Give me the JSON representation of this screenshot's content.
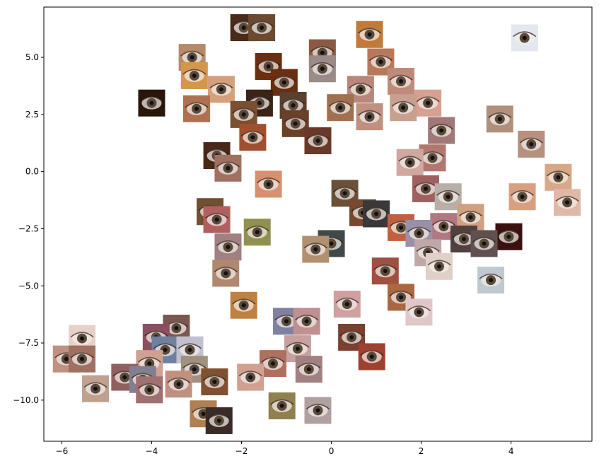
{
  "chart_data": {
    "type": "scatter",
    "title": "",
    "xlabel": "",
    "ylabel": "",
    "xlim": [
      -6.4,
      5.8
    ],
    "ylim": [
      -11.8,
      7.2
    ],
    "x_ticks": [
      -6,
      -4,
      -2,
      0,
      2,
      4
    ],
    "x_tick_labels": [
      "−6",
      "−4",
      "−2",
      "0",
      "2",
      "4"
    ],
    "y_ticks": [
      5.0,
      2.5,
      0.0,
      -2.5,
      -5.0,
      -7.5,
      -10.0
    ],
    "y_tick_labels": [
      "5.0",
      "2.5",
      "0.0",
      "−2.5",
      "−5.0",
      "−7.5",
      "−10.0"
    ],
    "grid": false,
    "marker": "eye-image-thumbnail",
    "points": [
      {
        "x": -1.95,
        "y": 6.3,
        "tone": "#4a2a18"
      },
      {
        "x": -1.55,
        "y": 6.3,
        "tone": "#6b4a30"
      },
      {
        "x": 0.85,
        "y": 6.0,
        "tone": "#c07a3a"
      },
      {
        "x": 4.3,
        "y": 5.85,
        "tone": "#e4e8ee"
      },
      {
        "x": -0.2,
        "y": 5.2,
        "tone": "#8a5a44"
      },
      {
        "x": -3.1,
        "y": 5.0,
        "tone": "#b58a6a"
      },
      {
        "x": 1.1,
        "y": 4.8,
        "tone": "#b8785a"
      },
      {
        "x": -1.4,
        "y": 4.6,
        "tone": "#6a2e10"
      },
      {
        "x": -0.2,
        "y": 4.5,
        "tone": "#9a8a88"
      },
      {
        "x": -3.05,
        "y": 4.2,
        "tone": "#d4964a"
      },
      {
        "x": -1.05,
        "y": 3.9,
        "tone": "#6a2e10"
      },
      {
        "x": 1.55,
        "y": 3.95,
        "tone": "#c08a7a"
      },
      {
        "x": -2.45,
        "y": 3.6,
        "tone": "#d4a07a"
      },
      {
        "x": 0.65,
        "y": 3.6,
        "tone": "#b8867a"
      },
      {
        "x": -4.0,
        "y": 3.0,
        "tone": "#2a1608"
      },
      {
        "x": -1.6,
        "y": 3.0,
        "tone": "#3a2418"
      },
      {
        "x": -0.85,
        "y": 2.9,
        "tone": "#5a4030"
      },
      {
        "x": 2.15,
        "y": 3.0,
        "tone": "#d8a090"
      },
      {
        "x": -3.0,
        "y": 2.75,
        "tone": "#b07050"
      },
      {
        "x": 0.2,
        "y": 2.8,
        "tone": "#a07050"
      },
      {
        "x": 1.6,
        "y": 2.8,
        "tone": "#c8a090"
      },
      {
        "x": -1.95,
        "y": 2.5,
        "tone": "#7a5030"
      },
      {
        "x": 0.85,
        "y": 2.4,
        "tone": "#c09080"
      },
      {
        "x": 3.75,
        "y": 2.3,
        "tone": "#b0907a"
      },
      {
        "x": -0.8,
        "y": 2.1,
        "tone": "#6a4028"
      },
      {
        "x": 2.45,
        "y": 1.8,
        "tone": "#a07878"
      },
      {
        "x": -1.75,
        "y": 1.5,
        "tone": "#a05030"
      },
      {
        "x": -0.3,
        "y": 1.35,
        "tone": "#6a3828"
      },
      {
        "x": 4.45,
        "y": 1.2,
        "tone": "#b89080"
      },
      {
        "x": -2.55,
        "y": 0.7,
        "tone": "#4a2818"
      },
      {
        "x": 2.25,
        "y": 0.6,
        "tone": "#b07870"
      },
      {
        "x": 1.75,
        "y": 0.4,
        "tone": "#d0a8a0"
      },
      {
        "x": -2.3,
        "y": 0.15,
        "tone": "#a07060"
      },
      {
        "x": 5.05,
        "y": -0.25,
        "tone": "#d8a888"
      },
      {
        "x": -1.4,
        "y": -0.55,
        "tone": "#d89070"
      },
      {
        "x": 2.1,
        "y": -0.75,
        "tone": "#a06060"
      },
      {
        "x": 0.3,
        "y": -0.95,
        "tone": "#6a5038"
      },
      {
        "x": 4.25,
        "y": -1.1,
        "tone": "#d8a080"
      },
      {
        "x": 2.6,
        "y": -1.1,
        "tone": "#b8b0a8"
      },
      {
        "x": 5.25,
        "y": -1.35,
        "tone": "#e0b8a8"
      },
      {
        "x": -2.7,
        "y": -1.75,
        "tone": "#705030"
      },
      {
        "x": 0.7,
        "y": -1.8,
        "tone": "#784830"
      },
      {
        "x": 1.0,
        "y": -1.85,
        "tone": "#3a3838"
      },
      {
        "x": 3.1,
        "y": -2.0,
        "tone": "#d0a080"
      },
      {
        "x": -2.55,
        "y": -2.1,
        "tone": "#b06060"
      },
      {
        "x": 1.55,
        "y": -2.45,
        "tone": "#c06040"
      },
      {
        "x": 2.5,
        "y": -2.4,
        "tone": "#b07880"
      },
      {
        "x": 3.95,
        "y": -2.85,
        "tone": "#3a1010"
      },
      {
        "x": 1.95,
        "y": -2.7,
        "tone": "#9a90a8"
      },
      {
        "x": -1.65,
        "y": -2.65,
        "tone": "#909050"
      },
      {
        "x": 2.95,
        "y": -2.95,
        "tone": "#504040"
      },
      {
        "x": 3.4,
        "y": -3.15,
        "tone": "#605050"
      },
      {
        "x": 0.0,
        "y": -3.15,
        "tone": "#404848"
      },
      {
        "x": -2.3,
        "y": -3.3,
        "tone": "#a08080"
      },
      {
        "x": -0.35,
        "y": -3.4,
        "tone": "#b09070"
      },
      {
        "x": 2.15,
        "y": -3.55,
        "tone": "#c0a8a8"
      },
      {
        "x": 2.4,
        "y": -4.15,
        "tone": "#e0d0c8"
      },
      {
        "x": 1.2,
        "y": -4.35,
        "tone": "#a05040"
      },
      {
        "x": -2.35,
        "y": -4.45,
        "tone": "#b08870"
      },
      {
        "x": 3.55,
        "y": -4.75,
        "tone": "#c0c8d0"
      },
      {
        "x": 1.55,
        "y": -5.5,
        "tone": "#a86840"
      },
      {
        "x": 0.35,
        "y": -5.8,
        "tone": "#d0a0a0"
      },
      {
        "x": -1.95,
        "y": -5.85,
        "tone": "#c08040"
      },
      {
        "x": 1.95,
        "y": -6.15,
        "tone": "#e0c8c8"
      },
      {
        "x": -1.0,
        "y": -6.55,
        "tone": "#8080a0"
      },
      {
        "x": -0.55,
        "y": -6.55,
        "tone": "#c09090"
      },
      {
        "x": -5.55,
        "y": -7.3,
        "tone": "#e8d0c8"
      },
      {
        "x": -3.45,
        "y": -6.85,
        "tone": "#7a5850"
      },
      {
        "x": -3.9,
        "y": -7.25,
        "tone": "#8a5060"
      },
      {
        "x": 0.45,
        "y": -7.25,
        "tone": "#7a4030"
      },
      {
        "x": -0.75,
        "y": -7.75,
        "tone": "#c8a0a0"
      },
      {
        "x": -3.7,
        "y": -7.8,
        "tone": "#7080a0"
      },
      {
        "x": -3.15,
        "y": -7.8,
        "tone": "#c0c0d0"
      },
      {
        "x": 0.9,
        "y": -8.1,
        "tone": "#a04030"
      },
      {
        "x": -5.9,
        "y": -8.2,
        "tone": "#c09080"
      },
      {
        "x": -5.55,
        "y": -8.2,
        "tone": "#a07060"
      },
      {
        "x": -4.05,
        "y": -8.4,
        "tone": "#d0a090"
      },
      {
        "x": -1.3,
        "y": -8.4,
        "tone": "#b07060"
      },
      {
        "x": -3.05,
        "y": -8.65,
        "tone": "#a09080"
      },
      {
        "x": -0.5,
        "y": -8.65,
        "tone": "#a08080"
      },
      {
        "x": -4.6,
        "y": -9.0,
        "tone": "#906060"
      },
      {
        "x": -4.2,
        "y": -9.1,
        "tone": "#808090"
      },
      {
        "x": -1.8,
        "y": -9.0,
        "tone": "#d0a090"
      },
      {
        "x": -2.6,
        "y": -9.2,
        "tone": "#805030"
      },
      {
        "x": -3.4,
        "y": -9.3,
        "tone": "#c09080"
      },
      {
        "x": -5.25,
        "y": -9.5,
        "tone": "#c0a090"
      },
      {
        "x": -4.05,
        "y": -9.55,
        "tone": "#a07070"
      },
      {
        "x": -1.1,
        "y": -10.25,
        "tone": "#908050"
      },
      {
        "x": -0.3,
        "y": -10.45,
        "tone": "#b0a0a0"
      },
      {
        "x": -2.85,
        "y": -10.6,
        "tone": "#b08050"
      },
      {
        "x": -2.5,
        "y": -10.9,
        "tone": "#3a2a28"
      }
    ]
  }
}
